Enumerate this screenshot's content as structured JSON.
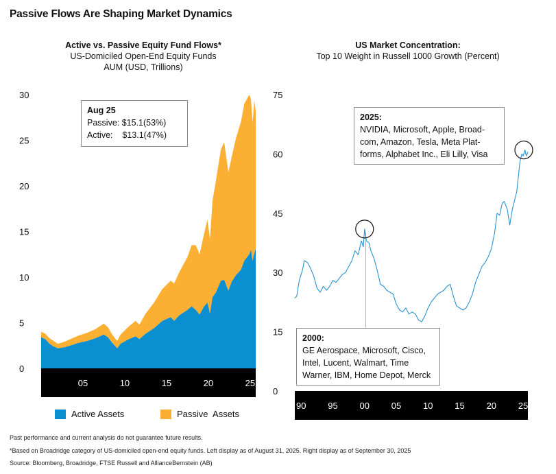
{
  "title": "Passive Flows Are Shaping Market Dynamics",
  "left_panel": {
    "title": "Active vs. Passive Equity Fund Flows*",
    "subtitle1": "US-Domiciled Open-End Equity Funds",
    "subtitle2": "AUM (USD, Trillions)",
    "callout": {
      "heading": "Aug 25",
      "line1": "Passive: $15.1(53%)",
      "line2": "Active:    $13.1(47%)"
    },
    "legend": {
      "active": "Active Assets",
      "passive": "Passive  Assets"
    }
  },
  "right_panel": {
    "title": "US Market Concentration:",
    "subtitle": "Top 10 Weight in Russell 1000 Growth (Percent)",
    "callout_2025": {
      "heading": "2025:",
      "line1": "NVIDIA, Microsoft, Apple, Broad-",
      "line2": "com, Amazon, Tesla, Meta Plat-",
      "line3": "forms, Alphabet Inc., Eli Lilly, Visa"
    },
    "callout_2000": {
      "heading": "2000:",
      "line1": "GE Aerospace, Microsoft, Cisco,",
      "line2": "Intel, Lucent, Walmart, Time",
      "line3": "Warner, IBM, Home Depot, Merck"
    }
  },
  "footnotes": {
    "disclaimer": "Past performance and current analysis do not guarantee future results.",
    "note": "*Based on Broadridge category of US-domiciled open-end equity funds. Left display as of August 31, 2025. Right display as of September 30, 2025",
    "source": "Source: Bloomberg, Broadridge, FTSE Russell and AllianceBernstein (AB)"
  },
  "colors": {
    "active": "#0b8fd0",
    "passive": "#fbb034",
    "line": "#2a93cf",
    "axis_band": "#000000"
  },
  "chart_data": [
    {
      "type": "area",
      "stacked": true,
      "title": "Active vs. Passive Equity Fund Flows*",
      "ylabel": "AUM (USD, Trillions)",
      "ylim": [
        0,
        30
      ],
      "yticks": [
        0,
        5,
        10,
        15,
        20,
        25,
        30
      ],
      "xticks": [
        {
          "x": 2005,
          "label": "05"
        },
        {
          "x": 2010,
          "label": "10"
        },
        {
          "x": 2015,
          "label": "15"
        },
        {
          "x": 2020,
          "label": "20"
        },
        {
          "x": 2025,
          "label": "25"
        }
      ],
      "xlim": [
        2000.0,
        2025.67
      ],
      "x": [
        2000.0,
        2000.5,
        2001.0,
        2001.5,
        2002.0,
        2002.75,
        2003.5,
        2004.5,
        2005.5,
        2006.5,
        2007.5,
        2008.0,
        2008.5,
        2009.1,
        2009.5,
        2010.5,
        2011.3,
        2011.75,
        2012.5,
        2013.5,
        2014.5,
        2015.5,
        2015.9,
        2016.5,
        2017.5,
        2018.0,
        2018.5,
        2018.95,
        2019.5,
        2019.9,
        2020.2,
        2020.5,
        2020.9,
        2021.5,
        2021.9,
        2022.4,
        2022.8,
        2023.3,
        2023.9,
        2024.3,
        2024.9,
        2025.1,
        2025.3,
        2025.5,
        2025.67
      ],
      "series": [
        {
          "name": "Active Assets",
          "values": [
            3.4,
            3.2,
            2.7,
            2.4,
            2.2,
            2.3,
            2.5,
            2.8,
            3.0,
            3.3,
            3.7,
            3.4,
            2.8,
            2.2,
            2.7,
            3.2,
            3.5,
            3.2,
            3.8,
            4.4,
            5.2,
            5.6,
            5.2,
            5.8,
            6.4,
            6.8,
            6.4,
            5.9,
            6.8,
            7.2,
            6.0,
            7.8,
            8.3,
            9.6,
            9.7,
            8.5,
            9.5,
            10.2,
            10.8,
            11.8,
            12.5,
            13.0,
            11.8,
            12.6,
            13.1
          ]
        },
        {
          "name": "Passive  Assets",
          "values": [
            0.6,
            0.6,
            0.6,
            0.6,
            0.5,
            0.6,
            0.7,
            0.8,
            0.9,
            1.0,
            1.2,
            1.1,
            0.9,
            0.8,
            1.0,
            1.4,
            1.7,
            1.6,
            2.2,
            2.8,
            3.5,
            4.0,
            4.1,
            4.7,
            5.8,
            6.7,
            7.1,
            6.6,
            8.0,
            9.1,
            8.2,
            10.6,
            12.2,
            14.4,
            15.1,
            13.0,
            13.7,
            15.0,
            16.2,
            17.2,
            17.5,
            16.5,
            15.2,
            16.8,
            15.1
          ]
        }
      ]
    },
    {
      "type": "line",
      "title": "US Market Concentration:",
      "subtitle": "Top 10 Weight in Russell 1000 Growth (Percent)",
      "ylim": [
        0,
        75
      ],
      "yticks": [
        0,
        15,
        30,
        45,
        60,
        75
      ],
      "xlim": [
        1989.0,
        2025.75
      ],
      "xticks": [
        {
          "x": 1990,
          "label": "90"
        },
        {
          "x": 1995,
          "label": "95"
        },
        {
          "x": 2000,
          "label": "00"
        },
        {
          "x": 2005,
          "label": "05"
        },
        {
          "x": 2010,
          "label": "10"
        },
        {
          "x": 2015,
          "label": "15"
        },
        {
          "x": 2020,
          "label": "20"
        },
        {
          "x": 2025,
          "label": "25"
        }
      ],
      "x": [
        1989.0,
        1989.3,
        1989.7,
        1990.2,
        1990.5,
        1991.0,
        1991.5,
        1992.0,
        1992.5,
        1993.0,
        1993.5,
        1994.0,
        1994.5,
        1995.0,
        1995.5,
        1996.0,
        1996.5,
        1997.0,
        1997.5,
        1998.0,
        1998.5,
        1999.0,
        1999.5,
        1999.8,
        2000.0,
        2000.3,
        2000.7,
        2001.0,
        2001.5,
        2002.0,
        2002.5,
        2003.0,
        2003.5,
        2004.0,
        2004.5,
        2005.0,
        2005.5,
        2006.0,
        2006.5,
        2007.0,
        2007.5,
        2008.0,
        2008.5,
        2009.0,
        2009.5,
        2010.0,
        2010.5,
        2011.0,
        2011.5,
        2012.0,
        2012.5,
        2013.0,
        2013.5,
        2014.0,
        2014.5,
        2015.0,
        2015.5,
        2016.0,
        2016.5,
        2017.0,
        2017.5,
        2018.0,
        2018.5,
        2019.0,
        2019.5,
        2020.0,
        2020.5,
        2020.9,
        2021.3,
        2021.7,
        2022.0,
        2022.5,
        2022.9,
        2023.3,
        2023.7,
        2024.0,
        2024.5,
        2024.8,
        2025.0,
        2025.3,
        2025.5,
        2025.75
      ],
      "y": [
        23.5,
        24.0,
        28.0,
        30.5,
        33.0,
        32.5,
        31.0,
        29.0,
        26.0,
        25.0,
        26.5,
        25.5,
        26.5,
        28.0,
        27.5,
        28.5,
        29.5,
        30.0,
        31.5,
        33.0,
        35.5,
        34.5,
        38.0,
        36.5,
        41.0,
        38.0,
        37.5,
        35.5,
        33.5,
        30.5,
        27.0,
        26.5,
        25.5,
        25.0,
        24.5,
        22.0,
        20.5,
        20.0,
        21.0,
        19.5,
        20.0,
        19.5,
        18.0,
        17.5,
        19.0,
        21.0,
        22.5,
        23.5,
        24.5,
        25.0,
        25.5,
        26.5,
        27.0,
        24.0,
        21.5,
        21.0,
        20.5,
        21.0,
        22.5,
        24.5,
        27.5,
        29.5,
        31.5,
        32.5,
        34.0,
        36.0,
        40.0,
        45.0,
        44.5,
        47.5,
        48.0,
        46.0,
        42.0,
        46.0,
        48.5,
        50.5,
        58.0,
        60.0,
        59.5,
        61.0,
        59.5,
        60.5
      ]
    }
  ]
}
